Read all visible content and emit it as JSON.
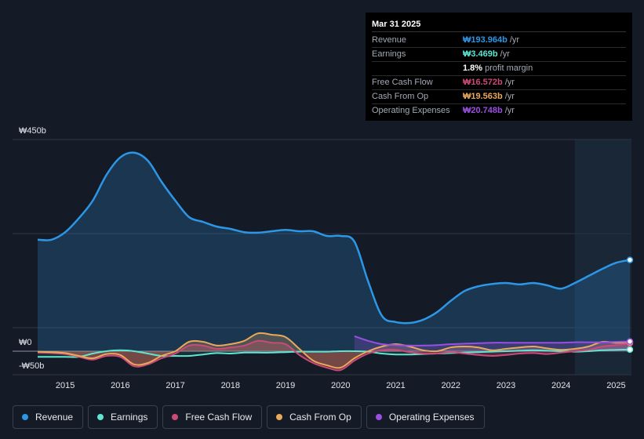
{
  "chart_data": {
    "type": "area",
    "y_axis": {
      "min": -50,
      "max": 450,
      "labels": [
        "₩450b",
        "₩0",
        "-₩50b"
      ]
    },
    "x_axis": {
      "min": 2014.5,
      "max": 2025.25,
      "tick_labels": [
        "2015",
        "2016",
        "2017",
        "2018",
        "2019",
        "2020",
        "2021",
        "2022",
        "2023",
        "2024",
        "2025"
      ]
    },
    "series": [
      {
        "name": "Revenue",
        "color": "#2c97e6",
        "x": [
          2014.5,
          2014.75,
          2015.0,
          2015.25,
          2015.5,
          2015.75,
          2016.0,
          2016.25,
          2016.5,
          2016.75,
          2017.0,
          2017.25,
          2017.5,
          2017.75,
          2018.0,
          2018.25,
          2018.5,
          2018.75,
          2019.0,
          2019.25,
          2019.5,
          2019.75,
          2020.0,
          2020.25,
          2020.5,
          2020.75,
          2021.0,
          2021.25,
          2021.5,
          2021.75,
          2022.0,
          2022.25,
          2022.5,
          2022.75,
          2023.0,
          2023.25,
          2023.5,
          2023.75,
          2024.0,
          2024.25,
          2024.5,
          2024.75,
          2025.0,
          2025.25
        ],
        "values": [
          237,
          237,
          253,
          283,
          320,
          375,
          412,
          422,
          405,
          360,
          320,
          285,
          275,
          265,
          260,
          253,
          252,
          255,
          258,
          255,
          255,
          245,
          245,
          233,
          148,
          75,
          62,
          60,
          67,
          83,
          107,
          128,
          138,
          143,
          145,
          142,
          145,
          140,
          133,
          145,
          160,
          175,
          188,
          194
        ]
      },
      {
        "name": "Earnings",
        "color": "#5ee6d0",
        "x": [
          2014.5,
          2014.75,
          2015.0,
          2015.25,
          2015.5,
          2015.75,
          2016.0,
          2016.25,
          2016.5,
          2016.75,
          2017.0,
          2017.25,
          2017.5,
          2017.75,
          2018.0,
          2018.25,
          2018.5,
          2018.75,
          2019.0,
          2019.25,
          2019.5,
          2019.75,
          2020.0,
          2020.25,
          2020.5,
          2020.75,
          2021.0,
          2021.25,
          2021.5,
          2021.75,
          2022.0,
          2022.25,
          2022.5,
          2022.75,
          2023.0,
          2023.25,
          2023.5,
          2023.75,
          2024.0,
          2024.25,
          2024.5,
          2024.75,
          2025.0,
          2025.25
        ],
        "values": [
          -12,
          -12,
          -12,
          -12,
          -5,
          0,
          2,
          0,
          -5,
          -10,
          -10,
          -10,
          -7,
          -4,
          -5,
          -3,
          -3,
          -3,
          -2,
          -1,
          -1,
          -1,
          0,
          0,
          -1,
          -5,
          -7,
          -7,
          -6,
          -5,
          -4,
          -3,
          -2,
          -1,
          0,
          1,
          2,
          1,
          0,
          -1,
          0,
          2,
          3,
          3.5
        ]
      },
      {
        "name": "Free Cash Flow",
        "color": "#cc4a78",
        "x": [
          2014.5,
          2014.75,
          2015.0,
          2015.25,
          2015.5,
          2015.75,
          2016.0,
          2016.25,
          2016.5,
          2016.75,
          2017.0,
          2017.25,
          2017.5,
          2017.75,
          2018.0,
          2018.25,
          2018.5,
          2018.75,
          2019.0,
          2019.25,
          2019.5,
          2019.75,
          2020.0,
          2020.25,
          2020.5,
          2020.75,
          2021.0,
          2021.25,
          2021.5,
          2021.75,
          2022.0,
          2022.25,
          2022.5,
          2022.75,
          2023.0,
          2023.25,
          2023.5,
          2023.75,
          2024.0,
          2024.25,
          2024.5,
          2024.75,
          2025.0,
          2025.25
        ],
        "values": [
          -3,
          -4,
          -6,
          -12,
          -18,
          -10,
          -12,
          -32,
          -28,
          -15,
          -5,
          12,
          12,
          5,
          8,
          12,
          22,
          18,
          15,
          -8,
          -25,
          -35,
          -40,
          -20,
          -5,
          2,
          3,
          -2,
          -5,
          -5,
          -2,
          -5,
          -8,
          -10,
          -8,
          -5,
          -4,
          -6,
          -3,
          0,
          3,
          10,
          13,
          16.6
        ]
      },
      {
        "name": "Cash From Op",
        "color": "#e9a95a",
        "x": [
          2014.5,
          2014.75,
          2015.0,
          2015.25,
          2015.5,
          2015.75,
          2016.0,
          2016.25,
          2016.5,
          2016.75,
          2017.0,
          2017.25,
          2017.5,
          2017.75,
          2018.0,
          2018.25,
          2018.5,
          2018.75,
          2019.0,
          2019.25,
          2019.5,
          2019.75,
          2020.0,
          2020.25,
          2020.5,
          2020.75,
          2021.0,
          2021.25,
          2021.5,
          2021.75,
          2022.0,
          2022.25,
          2022.5,
          2022.75,
          2023.0,
          2023.25,
          2023.5,
          2023.75,
          2024.0,
          2024.25,
          2024.5,
          2024.75,
          2025.0,
          2025.25
        ],
        "values": [
          -1,
          -2,
          -4,
          -10,
          -15,
          -6,
          -8,
          -28,
          -25,
          -10,
          0,
          20,
          20,
          12,
          15,
          22,
          38,
          35,
          30,
          5,
          -20,
          -30,
          -35,
          -15,
          0,
          10,
          15,
          10,
          2,
          0,
          8,
          10,
          8,
          2,
          5,
          8,
          10,
          6,
          3,
          5,
          10,
          20,
          18,
          19.6
        ]
      },
      {
        "name": "Operating Expenses",
        "color": "#9b4fe0",
        "x": [
          2020.25,
          2020.5,
          2020.75,
          2021.0,
          2021.25,
          2021.5,
          2021.75,
          2022.0,
          2022.25,
          2022.5,
          2022.75,
          2023.0,
          2023.25,
          2023.5,
          2023.75,
          2024.0,
          2024.25,
          2024.5,
          2024.75,
          2025.0,
          2025.25
        ],
        "values": [
          32,
          22,
          15,
          13,
          12,
          12,
          13,
          15,
          16,
          17,
          18,
          18,
          18,
          18,
          18,
          18,
          19,
          19,
          19,
          20,
          20.7
        ]
      }
    ]
  },
  "tooltip": {
    "date": "Mar 31 2025",
    "rows": [
      {
        "label": "Revenue",
        "value": "₩193.964b",
        "unit": "/yr",
        "color": "#2c97e6"
      },
      {
        "label": "Earnings",
        "value": "₩3.469b",
        "unit": "/yr",
        "color": "#5ee6d0"
      },
      {
        "label": "",
        "value": "1.8%",
        "unit": "profit margin",
        "color": "#ffffff"
      },
      {
        "label": "Free Cash Flow",
        "value": "₩16.572b",
        "unit": "/yr",
        "color": "#cc4a78"
      },
      {
        "label": "Cash From Op",
        "value": "₩19.563b",
        "unit": "/yr",
        "color": "#e9a95a"
      },
      {
        "label": "Operating Expenses",
        "value": "₩20.748b",
        "unit": "/yr",
        "color": "#9b4fe0"
      }
    ]
  },
  "legend": [
    {
      "label": "Revenue",
      "color": "#2c97e6"
    },
    {
      "label": "Earnings",
      "color": "#5ee6d0"
    },
    {
      "label": "Free Cash Flow",
      "color": "#cc4a78"
    },
    {
      "label": "Cash From Op",
      "color": "#e9a95a"
    },
    {
      "label": "Operating Expenses",
      "color": "#9b4fe0"
    }
  ]
}
